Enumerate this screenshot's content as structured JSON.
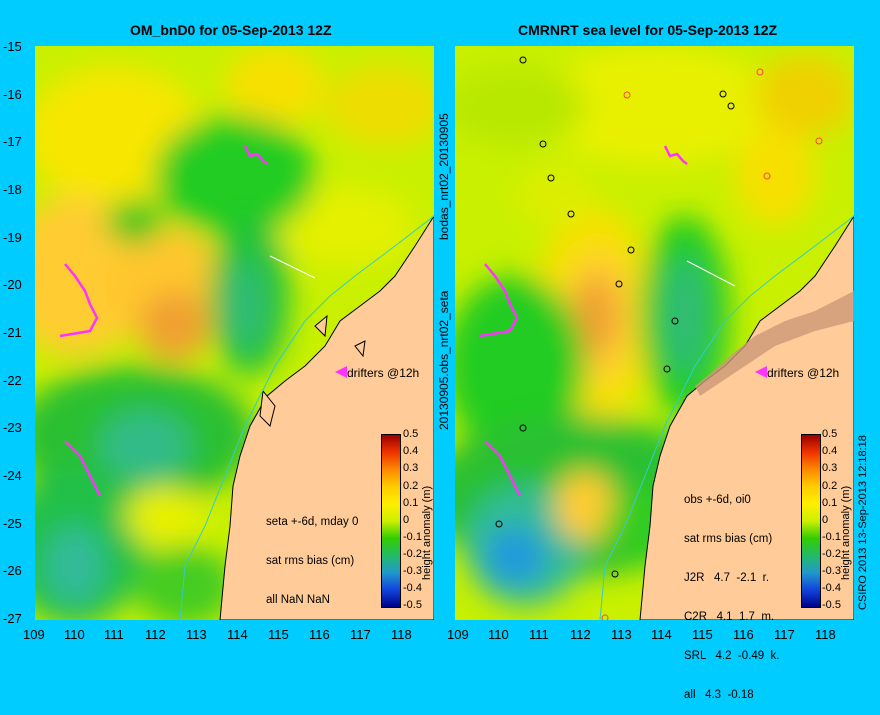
{
  "left_panel": {
    "title": "OM_bnD0 for 05-Sep-2013 12Z",
    "drifters_label": "drifters @12h",
    "stats_lines": [
      "seta +-6d, mday 0",
      "sat rms bias (cm)",
      "all NaN NaN"
    ],
    "side_label": "20130905.obs_nrt02_seta"
  },
  "right_panel": {
    "title": "CMRNRT sea level  for 05-Sep-2013 12Z",
    "drifters_label": "drifters @12h",
    "stats_lines": [
      "obs +-6d, oi0",
      "sat rms bias (cm)",
      "J2R   4.7  -2.1  r.",
      "C2R   4.1  1.7  m.",
      "SRL   4.2  -0.49  k.",
      "all   4.3  -0.18"
    ],
    "side_label_top": "bodas_nrt02_20130905",
    "side_label_right": "CSIRO 2013   13-Sep-2013 12:18:18"
  },
  "axes": {
    "lat_ticks": [
      "-15",
      "-16",
      "-17",
      "-18",
      "-19",
      "-20",
      "-21",
      "-22",
      "-23",
      "-24",
      "-25",
      "-26",
      "-27"
    ],
    "lon_ticks": [
      "109",
      "110",
      "111",
      "112",
      "113",
      "114",
      "115",
      "116",
      "117",
      "118"
    ],
    "lat_range": [
      -27,
      -15
    ],
    "lon_range": [
      109,
      118
    ]
  },
  "colorbar": {
    "label": "height anomaly (m)",
    "ticks": [
      "0.5",
      "0.4",
      "0.3",
      "0.2",
      "0.1",
      "0",
      "-0.1",
      "-0.2",
      "-0.3",
      "-0.4",
      "-0.5"
    ]
  },
  "colors": {
    "background": "#00ccff",
    "land": "#ffcc99",
    "coast": "#000000",
    "drifter": "#ff33ff",
    "bathy_line": "#33cccc"
  }
}
